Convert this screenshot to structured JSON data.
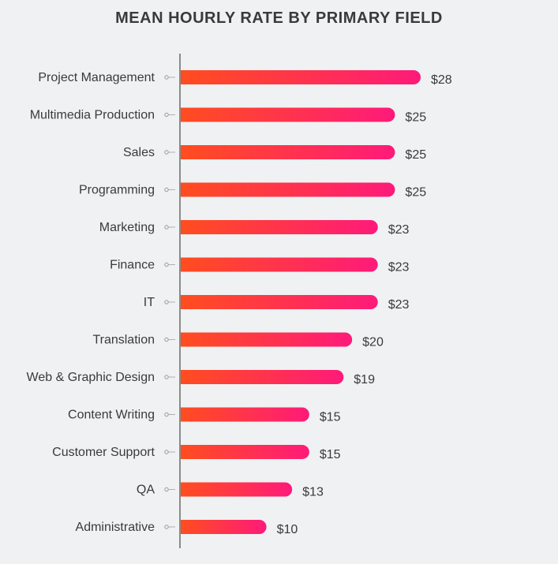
{
  "chart_data": {
    "type": "bar",
    "orientation": "horizontal",
    "title": "MEAN HOURLY RATE BY PRIMARY FIELD",
    "categories": [
      "Project Management",
      "Multimedia Production",
      "Sales",
      "Programming",
      "Marketing",
      "Finance",
      "IT",
      "Translation",
      "Web & Graphic Design",
      "Content Writing",
      "Customer Support",
      "QA",
      "Administrative"
    ],
    "values": [
      28,
      25,
      25,
      25,
      23,
      23,
      23,
      20,
      19,
      15,
      15,
      13,
      10
    ],
    "value_labels": [
      "$28",
      "$25",
      "$25",
      "$25",
      "$23",
      "$23",
      "$23",
      "$20",
      "$19",
      "$15",
      "$15",
      "$13",
      "$10"
    ],
    "xlabel": "",
    "ylabel": "",
    "xlim": [
      0,
      28
    ],
    "grid": false,
    "bar_gradient": {
      "start": "#ff4d1f",
      "end": "#ff1a7a"
    },
    "axis_color": "#8a8a8a"
  }
}
